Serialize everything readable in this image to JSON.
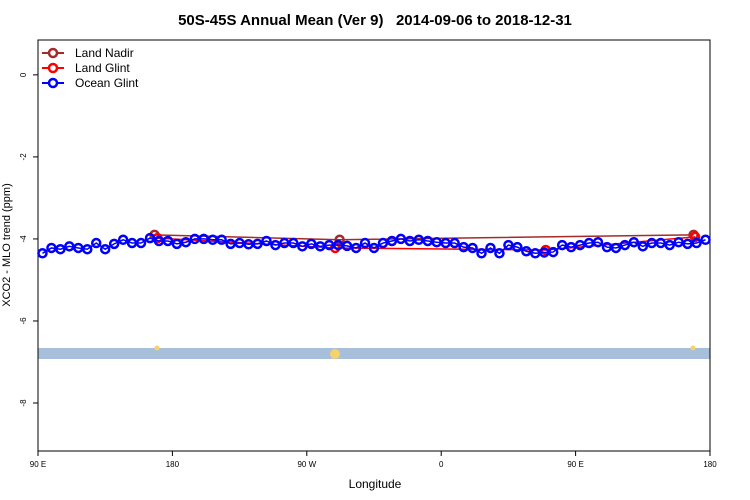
{
  "chart_data": {
    "type": "line",
    "title": "50S-45S Annual Mean (Ver 9)   2014-09-06 to 2018-12-31",
    "x_label": "Longitude",
    "y_label": "XCO2 - MLO trend (ppm)",
    "xlim": [
      90,
      540
    ],
    "ylim": [
      -9.17,
      0.85
    ],
    "xticks": [
      {
        "value": 90,
        "label": "90 E"
      },
      {
        "value": 180,
        "label": "180"
      },
      {
        "value": 270,
        "label": "90 W"
      },
      {
        "value": 360,
        "label": "0"
      },
      {
        "value": 450,
        "label": "90 E"
      },
      {
        "value": 540,
        "label": "180"
      }
    ],
    "yticks": [
      0,
      -2,
      -4,
      -6,
      -8
    ],
    "legend": "top-left",
    "series": [
      {
        "name": "Land Nadir",
        "color": "#a52a2a",
        "x": [
          168,
          292,
          529
        ],
        "values": [
          -3.9,
          -4.02,
          -3.9
        ]
      },
      {
        "name": "Land Glint",
        "color": "#ff0000",
        "x": [
          170,
          289,
          430,
          530
        ],
        "values": [
          -3.98,
          -4.22,
          -4.27,
          -3.95
        ]
      },
      {
        "name": "Ocean Glint",
        "color": "#0000ff",
        "x": [
          93,
          99,
          105,
          111,
          117,
          123,
          129,
          135,
          141,
          147,
          153,
          159,
          165,
          171,
          177,
          183,
          189,
          195,
          201,
          207,
          213,
          219,
          225,
          231,
          237,
          243,
          249,
          255,
          261,
          267,
          273,
          279,
          285,
          291,
          297,
          303,
          309,
          315,
          321,
          327,
          333,
          339,
          345,
          351,
          357,
          363,
          369,
          375,
          381,
          387,
          393,
          399,
          405,
          411,
          417,
          423,
          429,
          435,
          441,
          447,
          453,
          459,
          465,
          471,
          477,
          483,
          489,
          495,
          501,
          507,
          513,
          519,
          525,
          531,
          537
        ],
        "values": [
          -4.35,
          -4.22,
          -4.25,
          -4.18,
          -4.22,
          -4.25,
          -4.1,
          -4.25,
          -4.12,
          -4.02,
          -4.1,
          -4.1,
          -3.98,
          -4.05,
          -4.05,
          -4.12,
          -4.08,
          -4.0,
          -4.0,
          -4.02,
          -4.02,
          -4.12,
          -4.1,
          -4.13,
          -4.12,
          -4.05,
          -4.15,
          -4.1,
          -4.1,
          -4.18,
          -4.12,
          -4.18,
          -4.15,
          -4.15,
          -4.17,
          -4.22,
          -4.1,
          -4.22,
          -4.1,
          -4.05,
          -4.0,
          -4.05,
          -4.02,
          -4.05,
          -4.08,
          -4.1,
          -4.1,
          -4.2,
          -4.22,
          -4.35,
          -4.22,
          -4.35,
          -4.15,
          -4.2,
          -4.3,
          -4.35,
          -4.33,
          -4.32,
          -4.15,
          -4.2,
          -4.15,
          -4.1,
          -4.08,
          -4.2,
          -4.22,
          -4.15,
          -4.08,
          -4.18,
          -4.1,
          -4.1,
          -4.15,
          -4.08,
          -4.12,
          -4.1,
          -4.02
        ]
      }
    ]
  }
}
